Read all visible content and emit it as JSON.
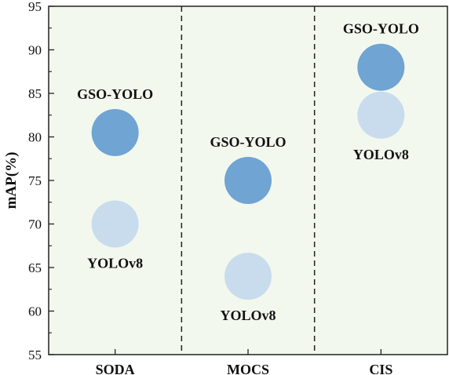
{
  "chart_data": {
    "type": "scatter",
    "title": "",
    "xlabel": "",
    "ylabel": "mAP(%)",
    "ylim": [
      55,
      95
    ],
    "yticks": [
      55,
      60,
      65,
      70,
      75,
      80,
      85,
      90,
      95
    ],
    "categories": [
      "SODA",
      "MOCS",
      "CIS"
    ],
    "grid": false,
    "background_color": "#f2f8ee",
    "separators": "dashed vertical lines between categories",
    "series": [
      {
        "name": "GSO-YOLO",
        "color": "#6fa4d3",
        "values": [
          80.5,
          75.0,
          88.0
        ],
        "label_positions": [
          "above",
          "above",
          "above"
        ]
      },
      {
        "name": "YOLOv8",
        "color": "#c9dced",
        "values": [
          70.0,
          64.0,
          82.5
        ],
        "label_positions": [
          "below",
          "below",
          "below"
        ]
      }
    ]
  }
}
